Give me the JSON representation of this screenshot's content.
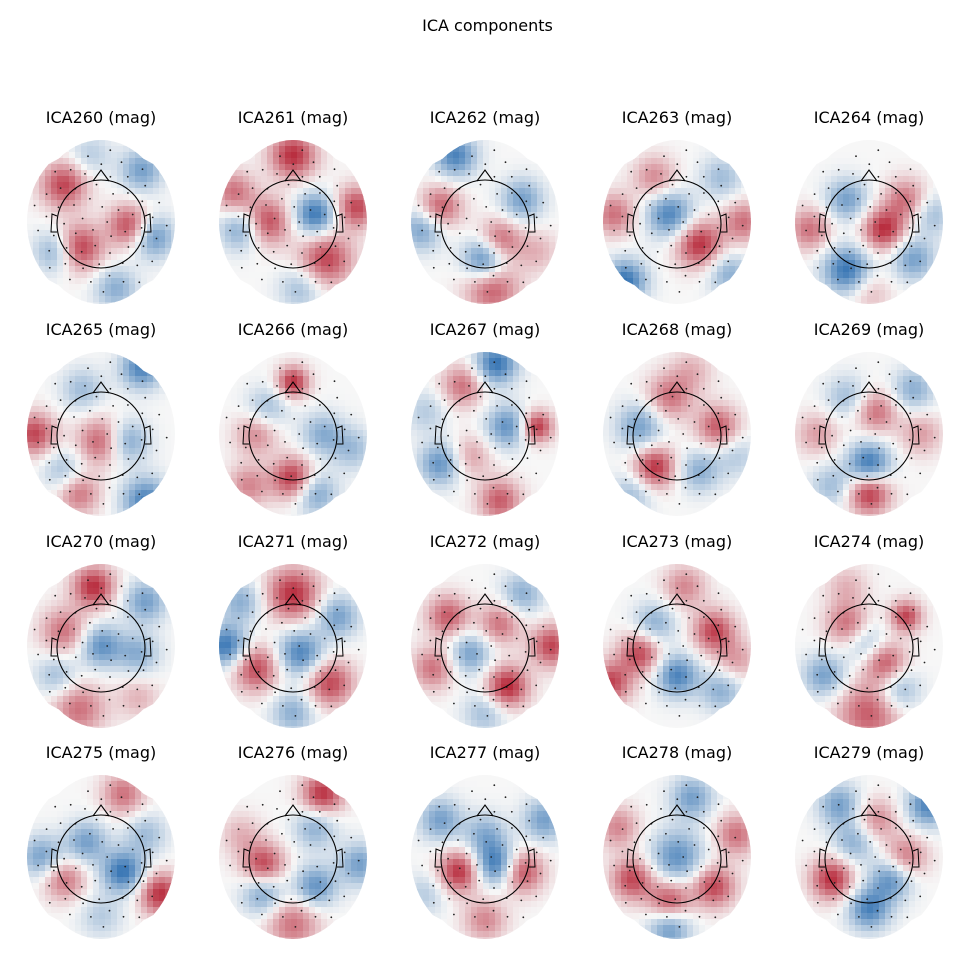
{
  "figure": {
    "title": "ICA components"
  },
  "colormap": {
    "negative": "#2166ac",
    "mid": "#f7f7f7",
    "positive": "#b2182b",
    "contour": "#000000"
  },
  "panels": [
    {
      "title": "ICA260 (mag)",
      "blobs": [
        [
          -0.5,
          -0.5,
          0.22,
          0.8
        ],
        [
          -0.3,
          0.35,
          0.22,
          0.9
        ],
        [
          0.38,
          0.05,
          0.2,
          0.8
        ],
        [
          0.55,
          -0.7,
          0.2,
          -0.6
        ],
        [
          0.7,
          0.2,
          0.2,
          -0.7
        ],
        [
          -0.6,
          0.4,
          0.2,
          -0.6
        ],
        [
          -0.15,
          -0.9,
          0.2,
          -0.3
        ],
        [
          0.2,
          0.9,
          0.2,
          -0.5
        ]
      ]
    },
    {
      "title": "ICA261 (mag)",
      "blobs": [
        [
          0.0,
          -0.9,
          0.22,
          0.9
        ],
        [
          -0.35,
          0.0,
          0.22,
          0.8
        ],
        [
          0.45,
          0.5,
          0.25,
          0.8
        ],
        [
          0.3,
          -0.1,
          0.2,
          -0.9
        ],
        [
          -0.7,
          0.1,
          0.2,
          -0.6
        ],
        [
          0.85,
          -0.2,
          0.2,
          0.8
        ],
        [
          -0.8,
          -0.4,
          0.2,
          0.6
        ],
        [
          0.1,
          0.9,
          0.2,
          -0.4
        ]
      ]
    },
    {
      "title": "ICA262 (mag)",
      "blobs": [
        [
          -0.4,
          -0.9,
          0.2,
          -0.8
        ],
        [
          -0.6,
          -0.2,
          0.2,
          0.7
        ],
        [
          0.2,
          0.25,
          0.2,
          0.7
        ],
        [
          0.0,
          0.5,
          0.2,
          -0.9
        ],
        [
          0.1,
          0.9,
          0.25,
          0.7
        ],
        [
          0.5,
          -0.3,
          0.2,
          -0.6
        ],
        [
          -0.85,
          0.1,
          0.2,
          -0.6
        ],
        [
          0.7,
          0.4,
          0.2,
          0.3
        ]
      ]
    },
    {
      "title": "ICA263 (mag)",
      "blobs": [
        [
          -0.3,
          -0.6,
          0.2,
          0.5
        ],
        [
          -0.1,
          -0.1,
          0.22,
          -0.8
        ],
        [
          0.3,
          0.3,
          0.22,
          0.9
        ],
        [
          -0.7,
          0.8,
          0.2,
          -0.9
        ],
        [
          0.7,
          0.7,
          0.2,
          -0.5
        ],
        [
          0.9,
          0.0,
          0.2,
          0.6
        ],
        [
          -0.85,
          -0.1,
          0.2,
          0.6
        ],
        [
          0.6,
          -0.6,
          0.2,
          -0.4
        ]
      ]
    },
    {
      "title": "ICA264 (mag)",
      "blobs": [
        [
          0.2,
          0.1,
          0.2,
          0.9
        ],
        [
          -0.3,
          0.65,
          0.22,
          -0.9
        ],
        [
          -0.3,
          -0.3,
          0.2,
          -0.6
        ],
        [
          0.5,
          -0.3,
          0.2,
          0.6
        ],
        [
          0.6,
          0.5,
          0.2,
          -0.6
        ],
        [
          -0.8,
          0.1,
          0.2,
          0.6
        ],
        [
          0.0,
          0.95,
          0.2,
          0.3
        ],
        [
          0.85,
          -0.1,
          0.2,
          -0.4
        ]
      ]
    },
    {
      "title": "ICA265 (mag)",
      "blobs": [
        [
          0.55,
          -0.9,
          0.2,
          -0.8
        ],
        [
          -0.9,
          0.0,
          0.2,
          0.8
        ],
        [
          0.0,
          0.1,
          0.22,
          0.7
        ],
        [
          0.6,
          0.9,
          0.22,
          -0.8
        ],
        [
          -0.5,
          0.5,
          0.2,
          -0.4
        ],
        [
          -0.3,
          0.8,
          0.2,
          0.6
        ],
        [
          0.35,
          0.1,
          0.2,
          -0.6
        ],
        [
          -0.25,
          -0.6,
          0.2,
          -0.4
        ]
      ]
    },
    {
      "title": "ICA266 (mag)",
      "blobs": [
        [
          0.0,
          -0.7,
          0.15,
          0.9
        ],
        [
          0.0,
          0.6,
          0.2,
          0.9
        ],
        [
          0.4,
          0.0,
          0.2,
          -0.5
        ],
        [
          -0.5,
          0.0,
          0.2,
          0.5
        ],
        [
          0.3,
          0.8,
          0.2,
          -0.6
        ],
        [
          -0.6,
          0.7,
          0.2,
          0.5
        ],
        [
          -0.35,
          -0.35,
          0.2,
          -0.4
        ],
        [
          0.8,
          0.2,
          0.2,
          -0.4
        ]
      ]
    },
    {
      "title": "ICA267 (mag)",
      "blobs": [
        [
          0.15,
          -0.95,
          0.2,
          -0.9
        ],
        [
          -0.3,
          -0.65,
          0.2,
          0.6
        ],
        [
          0.7,
          -0.1,
          0.15,
          0.9
        ],
        [
          0.3,
          -0.1,
          0.2,
          -0.7
        ],
        [
          0.2,
          0.9,
          0.2,
          0.7
        ],
        [
          -0.6,
          0.4,
          0.2,
          -0.7
        ],
        [
          -0.2,
          0.3,
          0.2,
          0.4
        ],
        [
          -0.8,
          -0.3,
          0.2,
          -0.3
        ]
      ]
    },
    {
      "title": "ICA268 (mag)",
      "blobs": [
        [
          -0.3,
          0.45,
          0.2,
          0.9
        ],
        [
          -0.1,
          -0.5,
          0.22,
          0.6
        ],
        [
          0.55,
          -0.1,
          0.2,
          0.7
        ],
        [
          -0.5,
          -0.1,
          0.22,
          -0.6
        ],
        [
          0.3,
          0.5,
          0.2,
          -0.5
        ],
        [
          -0.6,
          0.8,
          0.2,
          -0.4
        ],
        [
          0.8,
          0.3,
          0.2,
          -0.3
        ],
        [
          0.2,
          -0.85,
          0.2,
          0.3
        ]
      ]
    },
    {
      "title": "ICA269 (mag)",
      "blobs": [
        [
          0.0,
          0.8,
          0.2,
          0.9
        ],
        [
          0.0,
          0.4,
          0.2,
          -0.9
        ],
        [
          0.1,
          -0.3,
          0.2,
          0.6
        ],
        [
          -0.3,
          -0.5,
          0.2,
          -0.4
        ],
        [
          0.6,
          -0.6,
          0.2,
          -0.5
        ],
        [
          -0.7,
          0.0,
          0.2,
          0.4
        ],
        [
          0.7,
          0.0,
          0.2,
          0.4
        ],
        [
          -0.5,
          0.7,
          0.2,
          -0.4
        ]
      ]
    },
    {
      "title": "ICA270 (mag)",
      "blobs": [
        [
          -0.1,
          -0.8,
          0.2,
          0.9
        ],
        [
          -0.5,
          -0.2,
          0.22,
          0.6
        ],
        [
          0.0,
          0.0,
          0.2,
          -0.7
        ],
        [
          0.5,
          0.1,
          0.2,
          -0.5
        ],
        [
          -0.3,
          0.85,
          0.25,
          0.6
        ],
        [
          0.6,
          -0.6,
          0.2,
          -0.6
        ],
        [
          -0.6,
          0.4,
          0.2,
          -0.4
        ],
        [
          0.5,
          0.7,
          0.2,
          0.3
        ]
      ]
    },
    {
      "title": "ICA271 (mag)",
      "blobs": [
        [
          0.0,
          -0.7,
          0.25,
          0.9
        ],
        [
          -0.5,
          0.3,
          0.22,
          0.8
        ],
        [
          0.5,
          0.5,
          0.22,
          0.8
        ],
        [
          0.1,
          0.1,
          0.22,
          -0.8
        ],
        [
          -0.9,
          0.0,
          0.2,
          -0.9
        ],
        [
          0.6,
          -0.4,
          0.2,
          -0.6
        ],
        [
          -0.7,
          -0.6,
          0.2,
          -0.5
        ],
        [
          0.0,
          0.9,
          0.2,
          -0.5
        ]
      ]
    },
    {
      "title": "ICA272 (mag)",
      "blobs": [
        [
          0.3,
          0.55,
          0.2,
          0.95
        ],
        [
          0.2,
          -0.3,
          0.2,
          0.6
        ],
        [
          -0.5,
          -0.4,
          0.2,
          0.7
        ],
        [
          0.9,
          0.0,
          0.2,
          0.8
        ],
        [
          -0.7,
          0.3,
          0.2,
          0.6
        ],
        [
          -0.2,
          0.1,
          0.2,
          -0.6
        ],
        [
          0.5,
          -0.7,
          0.2,
          -0.5
        ],
        [
          0.0,
          0.9,
          0.2,
          -0.4
        ]
      ]
    },
    {
      "title": "ICA273 (mag)",
      "blobs": [
        [
          -0.5,
          0.1,
          0.2,
          0.8
        ],
        [
          0.5,
          -0.2,
          0.2,
          0.8
        ],
        [
          0.0,
          0.4,
          0.2,
          -0.8
        ],
        [
          -0.9,
          0.5,
          0.2,
          0.8
        ],
        [
          0.1,
          -0.8,
          0.2,
          0.5
        ],
        [
          0.6,
          0.6,
          0.2,
          -0.5
        ],
        [
          -0.3,
          -0.3,
          0.2,
          -0.5
        ],
        [
          0.8,
          0.2,
          0.2,
          0.4
        ]
      ]
    },
    {
      "title": "ICA274 (mag)",
      "blobs": [
        [
          0.2,
          0.2,
          0.2,
          0.8
        ],
        [
          0.0,
          0.9,
          0.3,
          0.7
        ],
        [
          -0.3,
          -0.3,
          0.2,
          0.6
        ],
        [
          0.5,
          -0.4,
          0.15,
          0.8
        ],
        [
          -0.6,
          0.4,
          0.2,
          -0.6
        ],
        [
          0.4,
          0.6,
          0.2,
          -0.5
        ],
        [
          -0.3,
          -0.8,
          0.2,
          0.3
        ],
        [
          0.0,
          0.0,
          0.2,
          -0.5
        ]
      ]
    },
    {
      "title": "ICA275 (mag)",
      "blobs": [
        [
          0.3,
          0.2,
          0.2,
          -0.9
        ],
        [
          0.8,
          0.5,
          0.2,
          0.9
        ],
        [
          -0.5,
          0.3,
          0.2,
          0.6
        ],
        [
          -0.2,
          -0.2,
          0.2,
          -0.6
        ],
        [
          0.3,
          -0.85,
          0.2,
          0.6
        ],
        [
          -0.8,
          0.0,
          0.2,
          -0.6
        ],
        [
          0.6,
          -0.3,
          0.2,
          -0.4
        ],
        [
          0.0,
          0.8,
          0.2,
          -0.3
        ]
      ]
    },
    {
      "title": "ICA276 (mag)",
      "blobs": [
        [
          0.4,
          -0.85,
          0.2,
          0.9
        ],
        [
          -0.4,
          0.1,
          0.2,
          0.8
        ],
        [
          0.0,
          0.9,
          0.25,
          0.6
        ],
        [
          0.3,
          0.4,
          0.2,
          -0.7
        ],
        [
          -0.4,
          0.5,
          0.2,
          -0.6
        ],
        [
          0.3,
          -0.4,
          0.2,
          -0.5
        ],
        [
          0.9,
          0.1,
          0.2,
          -0.6
        ],
        [
          -0.7,
          -0.3,
          0.2,
          0.3
        ]
      ]
    },
    {
      "title": "ICA277 (mag)",
      "blobs": [
        [
          -0.35,
          0.2,
          0.2,
          0.9
        ],
        [
          0.15,
          0.1,
          0.2,
          -0.9
        ],
        [
          0.5,
          0.2,
          0.2,
          0.8
        ],
        [
          0.0,
          -0.3,
          0.2,
          -0.5
        ],
        [
          -0.6,
          -0.5,
          0.2,
          -0.6
        ],
        [
          0.8,
          -0.5,
          0.2,
          -0.6
        ],
        [
          0.0,
          0.85,
          0.2,
          0.5
        ],
        [
          -0.8,
          0.5,
          0.2,
          -0.3
        ]
      ]
    },
    {
      "title": "ICA278 (mag)",
      "blobs": [
        [
          -0.1,
          0.6,
          0.2,
          0.8
        ],
        [
          0.5,
          0.4,
          0.2,
          0.8
        ],
        [
          -0.6,
          0.3,
          0.2,
          0.8
        ],
        [
          0.0,
          0.0,
          0.25,
          -0.7
        ],
        [
          0.2,
          -0.8,
          0.2,
          -0.6
        ],
        [
          -0.1,
          0.95,
          0.2,
          -0.7
        ],
        [
          -0.8,
          -0.4,
          0.2,
          0.5
        ],
        [
          0.8,
          -0.3,
          0.2,
          0.6
        ]
      ]
    },
    {
      "title": "ICA279 (mag)",
      "blobs": [
        [
          -0.5,
          0.3,
          0.2,
          0.9
        ],
        [
          0.3,
          0.3,
          0.2,
          -0.7
        ],
        [
          0.0,
          0.7,
          0.2,
          -0.8
        ],
        [
          0.5,
          0.0,
          0.2,
          0.6
        ],
        [
          -0.2,
          -0.2,
          0.2,
          -0.5
        ],
        [
          0.8,
          -0.7,
          0.2,
          -0.8
        ],
        [
          -0.4,
          -0.7,
          0.2,
          -0.6
        ],
        [
          0.1,
          -0.5,
          0.2,
          0.5
        ]
      ]
    }
  ]
}
